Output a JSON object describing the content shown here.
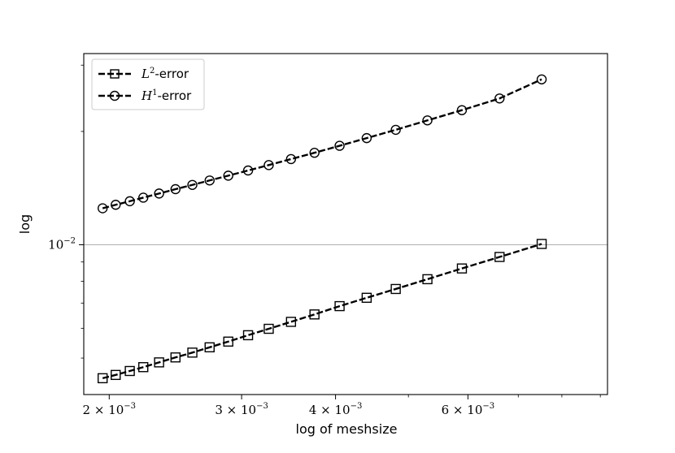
{
  "chart_data": {
    "type": "line",
    "xlabel": "log of meshsize",
    "ylabel": "log",
    "x_scale": "log",
    "y_scale": "log",
    "xlim": [
      0.00185,
      0.0092
    ],
    "ylim": [
      0.004,
      0.0322
    ],
    "grid": "horizontal line at 10^-2 only",
    "legend_position": "top-left",
    "x_ticks": [
      {
        "value": 0.002,
        "mantissa": "2",
        "times": " × ",
        "base": "10",
        "exp": "−3"
      },
      {
        "value": 0.003,
        "mantissa": "3",
        "times": " × ",
        "base": "10",
        "exp": "−3"
      },
      {
        "value": 0.004,
        "mantissa": "4",
        "times": " × ",
        "base": "10",
        "exp": "−3"
      },
      {
        "value": 0.006,
        "mantissa": "6",
        "times": " × ",
        "base": "10",
        "exp": "−3"
      }
    ],
    "x_minor_ticks": [
      0.005,
      0.007,
      0.008,
      0.009
    ],
    "y_ticks": [
      {
        "value": 0.01,
        "base": "10",
        "exp": "−2"
      }
    ],
    "y_minor_ticks": [
      0.005,
      0.006,
      0.007,
      0.008,
      0.009,
      0.02,
      0.03
    ],
    "x": [
      0.00196,
      0.00204,
      0.00213,
      0.00222,
      0.00233,
      0.00245,
      0.00258,
      0.00272,
      0.00288,
      0.00306,
      0.00326,
      0.00349,
      0.00375,
      0.00405,
      0.0044,
      0.00481,
      0.0053,
      0.00589,
      0.00661,
      0.00752
    ],
    "series": [
      {
        "name": "L",
        "name_sup": "2",
        "name_suffix": "-error",
        "marker": "square",
        "color": "#000000",
        "values": [
          0.00442,
          0.00451,
          0.00462,
          0.00473,
          0.00487,
          0.00502,
          0.00517,
          0.00534,
          0.00553,
          0.00575,
          0.00598,
          0.00624,
          0.00653,
          0.00687,
          0.00723,
          0.00763,
          0.0081,
          0.00865,
          0.00928,
          0.01005
        ]
      },
      {
        "name": "H",
        "name_sup": "1",
        "name_suffix": "-error",
        "marker": "circle",
        "color": "#000000",
        "values": [
          0.0125,
          0.01277,
          0.01305,
          0.01334,
          0.01368,
          0.01405,
          0.01442,
          0.01482,
          0.01526,
          0.01575,
          0.01628,
          0.01689,
          0.01755,
          0.01832,
          0.0192,
          0.0202,
          0.0214,
          0.02278,
          0.02447,
          0.0275
        ]
      }
    ]
  }
}
